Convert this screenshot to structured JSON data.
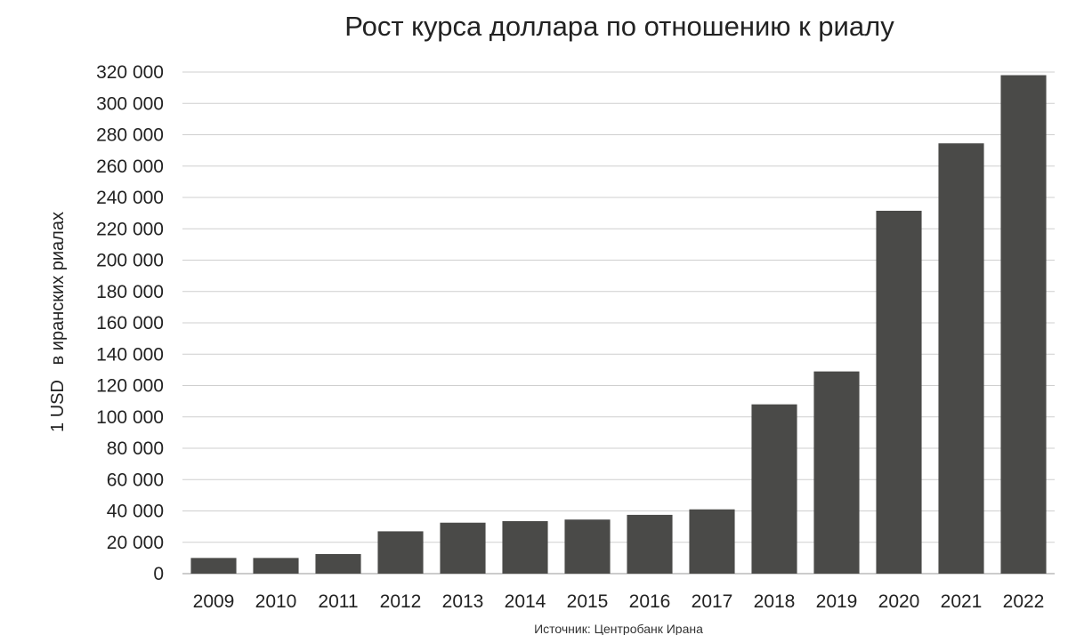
{
  "chart_data": {
    "type": "bar",
    "title": "Рост курса доллара по отношению к риалу",
    "ylabel": "1 USD   в иранских риалах",
    "xlabel": "",
    "source": "Источник: Центробанк Ирана",
    "categories": [
      "2009",
      "2010",
      "2011",
      "2012",
      "2013",
      "2014",
      "2015",
      "2016",
      "2017",
      "2018",
      "2019",
      "2020",
      "2021",
      "2022"
    ],
    "values": [
      10000,
      10000,
      12500,
      27000,
      32500,
      33500,
      34500,
      37500,
      41000,
      108000,
      129000,
      231500,
      274500,
      318000
    ],
    "ylim": [
      0,
      320000
    ],
    "yticks": [
      0,
      20000,
      40000,
      60000,
      80000,
      100000,
      120000,
      140000,
      160000,
      180000,
      200000,
      220000,
      240000,
      260000,
      280000,
      300000,
      320000
    ],
    "ytick_labels": [
      "0",
      "20 000",
      "40 000",
      "60 000",
      "80 000",
      "100 000",
      "120 000",
      "140 000",
      "160 000",
      "180 000",
      "200 000",
      "220 000",
      "240 000",
      "260 000",
      "280 000",
      "300 000",
      "320 000"
    ],
    "grid": true,
    "legend": "none",
    "colors": {
      "bar": "#4a4a48",
      "grid": "#cfcfcf",
      "text": "#222222"
    }
  }
}
